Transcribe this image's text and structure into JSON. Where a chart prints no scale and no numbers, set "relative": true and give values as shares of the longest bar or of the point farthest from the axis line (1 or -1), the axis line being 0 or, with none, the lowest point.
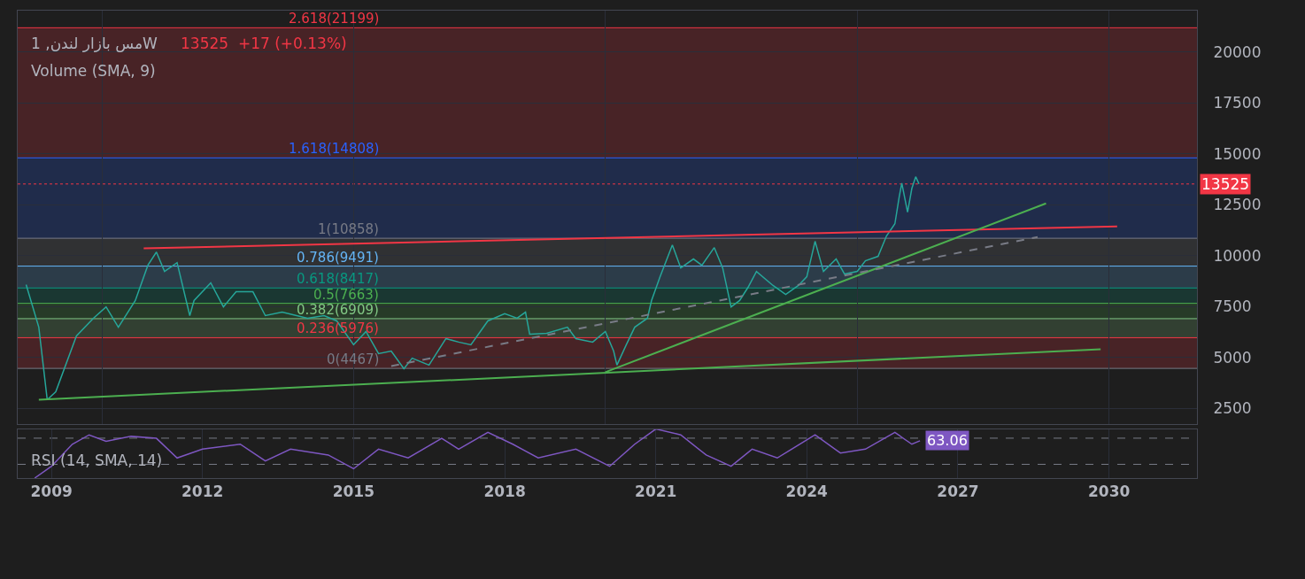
{
  "chart_data": [
    {
      "type": "line",
      "title": "مس بازار لندن, 1W",
      "subtitle": "13525  +17 (+0.13%)",
      "annotations": [
        "Volume (SMA, 9)"
      ],
      "xlim": [
        "2008-05",
        "2031-10"
      ],
      "ylim": [
        1720,
        22040
      ],
      "yticks": [
        2500,
        5000,
        7500,
        10000,
        12500,
        15000,
        17500,
        20000
      ],
      "tick_labels": "y",
      "grid": true,
      "marker": "none",
      "series": [
        {
          "color": "#26a69a",
          "x": [
            "2008-07",
            "2008-10",
            "2008-12",
            "2009-02",
            "2009-07",
            "2009-11",
            "2010-02",
            "2010-05",
            "2010-09",
            "2010-12",
            "2011-02",
            "2011-04",
            "2011-07",
            "2011-10",
            "2011-11",
            "2012-03",
            "2012-06",
            "2012-09",
            "2013-01",
            "2013-04",
            "2013-08",
            "2014-02",
            "2014-06",
            "2014-09",
            "2015-01",
            "2015-04",
            "2015-07",
            "2015-10",
            "2016-01",
            "2016-03",
            "2016-07",
            "2016-11",
            "2017-02",
            "2017-05",
            "2017-09",
            "2018-01",
            "2018-04",
            "2018-06",
            "2018-07",
            "2018-11",
            "2019-04",
            "2019-06",
            "2019-10",
            "2020-01",
            "2020-03",
            "2020-03-25",
            "2020-06",
            "2020-08",
            "2020-11",
            "2020-12",
            "2021-02",
            "2021-05",
            "2021-07",
            "2021-10",
            "2021-12",
            "2022-03",
            "2022-05",
            "2022-07",
            "2022-09",
            "2022-11",
            "2023-01",
            "2023-05",
            "2023-08",
            "2023-11",
            "2024-01",
            "2024-03",
            "2024-05",
            "2024-08",
            "2024-10",
            "2025-01",
            "2025-03",
            "2025-06",
            "2025-08",
            "2025-10",
            "2025-11",
            "2025-11-20",
            "2026-01",
            "2026-02",
            "2026-03",
            "2026-03-25"
          ],
          "values": [
            8580,
            6490,
            2930,
            3320,
            6060,
            6930,
            7490,
            6490,
            7800,
            9530,
            10180,
            9230,
            9660,
            7060,
            7800,
            8670,
            7490,
            8230,
            8230,
            7060,
            7230,
            6930,
            7060,
            6800,
            5630,
            6280,
            5190,
            5320,
            4450,
            4970,
            4630,
            5930,
            5760,
            5630,
            6800,
            7150,
            6930,
            7230,
            6150,
            6190,
            6490,
            5930,
            5760,
            6280,
            5320,
            4630,
            5630,
            6490,
            6930,
            7800,
            8970,
            10530,
            9400,
            9840,
            9530,
            10400,
            9400,
            7490,
            7800,
            8450,
            9230,
            8540,
            8100,
            8540,
            8970,
            10710,
            9230,
            9840,
            9100,
            9230,
            9750,
            9970,
            10970,
            11570,
            12880,
            13570,
            12140,
            13310,
            13880,
            13525
          ]
        },
        {
          "color": "#f23645",
          "x": [
            "2010-11",
            "2030-03"
          ],
          "values": [
            10360,
            11440
          ]
        },
        {
          "color": "#4caf50",
          "x": [
            "2008-10",
            "2029-11"
          ],
          "values": [
            2930,
            5410
          ]
        },
        {
          "color": "#4caf50",
          "x": [
            "2020-01",
            "2028-10"
          ],
          "values": [
            4280,
            12570
          ]
        },
        {
          "color": "#787b86",
          "line_style": "dashed",
          "x": [
            "2015-10",
            "2028-08"
          ],
          "values": [
            4580,
            10920
          ]
        }
      ],
      "bands": [
        {
          "axis": "y",
          "from": 4467,
          "to": 5976,
          "color": "#f23645"
        },
        {
          "axis": "y",
          "from": 5976,
          "to": 6909,
          "color": "#81c784"
        },
        {
          "axis": "y",
          "from": 6909,
          "to": 7663,
          "color": "#4caf50"
        },
        {
          "axis": "y",
          "from": 7663,
          "to": 8417,
          "color": "#089981"
        },
        {
          "axis": "y",
          "from": 8417,
          "to": 9491,
          "color": "#64b5f6"
        },
        {
          "axis": "y",
          "from": 9491,
          "to": 10858,
          "color": "#787b86"
        },
        {
          "axis": "y",
          "from": 10858,
          "to": 14808,
          "color": "#2962ff"
        },
        {
          "axis": "y",
          "from": 14808,
          "to": 21199,
          "color": "#f23645"
        }
      ],
      "ref_lines": [
        {
          "axis": "y",
          "value": 4467,
          "label": "0(4467)",
          "color": "#787b86"
        },
        {
          "axis": "y",
          "value": 5976,
          "label": "0.236(5976)",
          "color": "#f23645"
        },
        {
          "axis": "y",
          "value": 6909,
          "label": "0.382(6909)",
          "color": "#81c784"
        },
        {
          "axis": "y",
          "value": 7663,
          "label": "0.5(7663)",
          "color": "#4caf50"
        },
        {
          "axis": "y",
          "value": 8417,
          "label": "0.618(8417)",
          "color": "#089981"
        },
        {
          "axis": "y",
          "value": 9491,
          "label": "0.786(9491)",
          "color": "#64b5f6"
        },
        {
          "axis": "y",
          "value": 10858,
          "label": "1(10858)",
          "color": "#787b86"
        },
        {
          "axis": "y",
          "value": 14808,
          "label": "1.618(14808)",
          "color": "#2962ff"
        },
        {
          "axis": "y",
          "value": 21199,
          "label": "2.618(21199)",
          "color": "#f23645"
        },
        {
          "axis": "y",
          "value": 13525,
          "label": "13525",
          "color": "#f23645",
          "line_style": "dotted"
        }
      ]
    },
    {
      "type": "line",
      "title": "RSI (14, SMA, 14)",
      "relative": true,
      "tick_labels": "x",
      "grid": true,
      "marker": "none",
      "xlim": [
        "2008-05",
        "2031-10"
      ],
      "xticks": [
        "2009",
        "2012",
        "2015",
        "2018",
        "2021",
        "2024",
        "2027",
        "2030"
      ],
      "annotations": [
        {
          "text": "63.06",
          "x": "2026-04",
          "y": 0.76
        }
      ],
      "ref_lines": [
        {
          "axis": "y",
          "value": 0.813,
          "color": "#787b86",
          "line_style": "dashed"
        },
        {
          "axis": "y",
          "value": 0.28,
          "color": "#787b86",
          "line_style": "dashed"
        }
      ],
      "series": [
        {
          "color": "#7e57c2",
          "x": [
            "2008-09",
            "2009-01",
            "2009-06",
            "2009-10",
            "2010-02",
            "2010-08",
            "2011-02",
            "2011-07",
            "2012-01",
            "2012-10",
            "2013-04",
            "2013-10",
            "2014-07",
            "2015-01",
            "2015-07",
            "2016-02",
            "2016-10",
            "2017-02",
            "2017-09",
            "2018-03",
            "2018-09",
            "2019-06",
            "2020-02",
            "2020-08",
            "2021-01",
            "2021-07",
            "2022-01",
            "2022-07",
            "2022-12",
            "2023-06",
            "2024-03",
            "2024-09",
            "2025-03",
            "2025-10",
            "2026-02",
            "2026-04"
          ],
          "values": [
            0,
            0.24,
            0.69,
            0.88,
            0.75,
            0.85,
            0.81,
            0.41,
            0.59,
            0.69,
            0.35,
            0.59,
            0.47,
            0.19,
            0.59,
            0.41,
            0.81,
            0.59,
            0.93,
            0.69,
            0.41,
            0.59,
            0.24,
            0.69,
            1,
            0.88,
            0.47,
            0.24,
            0.59,
            0.41,
            0.88,
            0.51,
            0.59,
            0.93,
            0.69,
            0.76
          ]
        }
      ]
    }
  ]
}
